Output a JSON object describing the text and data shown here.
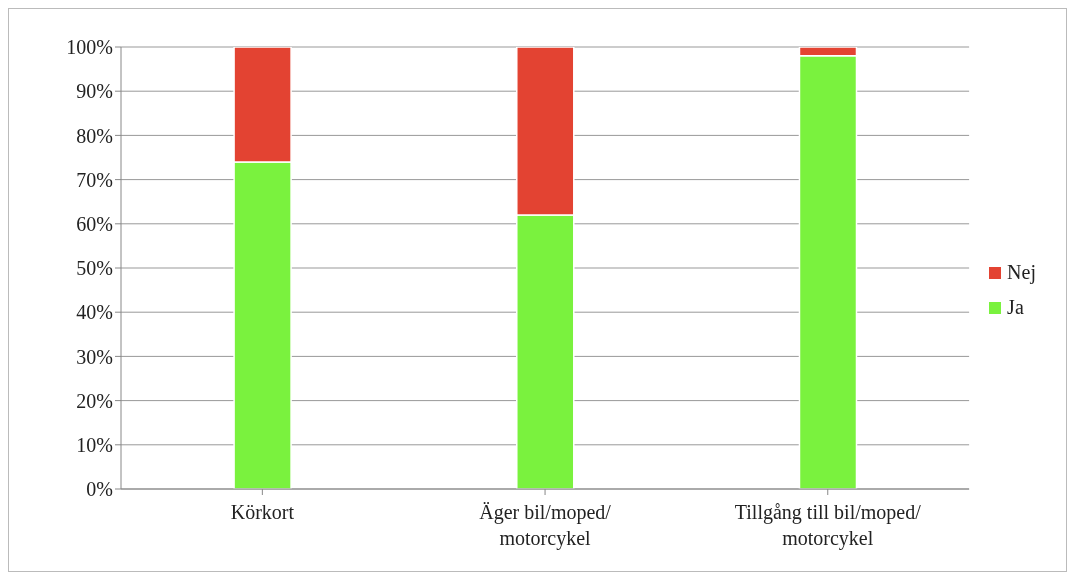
{
  "chart_data": {
    "type": "bar",
    "stacked": true,
    "categories": [
      "Körkort",
      "Äger bil/moped/motorcykel",
      "Tillgång till bil/moped/motorcykel"
    ],
    "series": [
      {
        "name": "Ja",
        "color": "#7af23e",
        "values": [
          74,
          62,
          98
        ]
      },
      {
        "name": "Nej",
        "color": "#e34332",
        "values": [
          26,
          38,
          2
        ]
      }
    ],
    "ylim": [
      0,
      100
    ],
    "yticks": [
      {
        "value": 0,
        "label": "0%"
      },
      {
        "value": 10,
        "label": "10%"
      },
      {
        "value": 20,
        "label": "20%"
      },
      {
        "value": 30,
        "label": "30%"
      },
      {
        "value": 40,
        "label": "40%"
      },
      {
        "value": 50,
        "label": "50%"
      },
      {
        "value": 60,
        "label": "60%"
      },
      {
        "value": 70,
        "label": "70%"
      },
      {
        "value": 80,
        "label": "80%"
      },
      {
        "value": 90,
        "label": "90%"
      },
      {
        "value": 100,
        "label": "100%"
      }
    ],
    "grid": "y",
    "legend": "right"
  }
}
